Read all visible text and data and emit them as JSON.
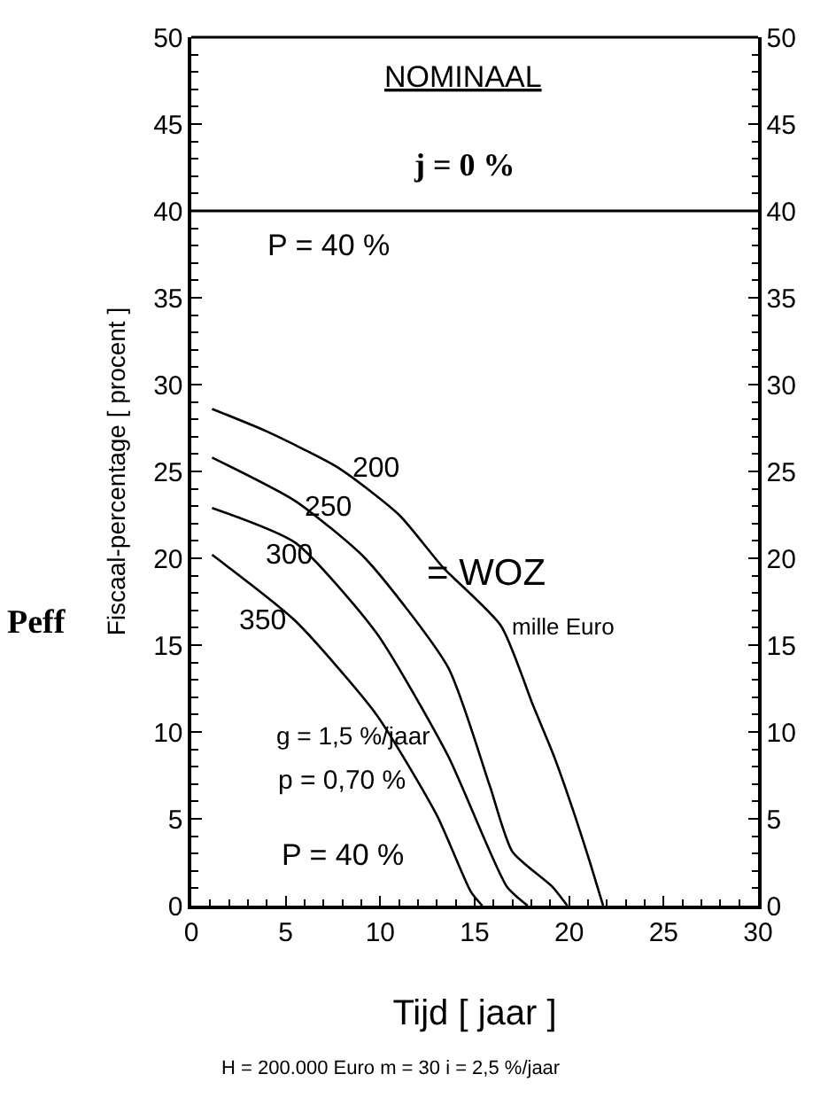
{
  "chart_data": {
    "type": "line",
    "xlabel": "Tijd [ jaar ]",
    "ylabel": "Fiscaal-percentage [ procent ]",
    "xlim": [
      0,
      30
    ],
    "xticks": [
      0,
      5,
      10,
      15,
      20,
      25,
      30
    ],
    "ylim": [
      0,
      50
    ],
    "yticks": [
      0,
      5,
      10,
      15,
      20,
      25,
      30,
      35,
      40,
      45,
      50
    ],
    "y2lim": [
      0,
      50
    ],
    "y2ticks": [
      0,
      5,
      10,
      15,
      20,
      25,
      30,
      35,
      40,
      45,
      50
    ],
    "marker": "none",
    "line_style": "solid",
    "series": [
      {
        "color": "#000000",
        "x": [
          1.1,
          4,
          7.8,
          11,
          13.3,
          16.4,
          18.1,
          19.2,
          20.3,
          21.1,
          21.8
        ],
        "values": [
          28.6,
          27.3,
          25.2,
          22.5,
          19.5,
          16.1,
          11.5,
          8.6,
          5.2,
          2.5,
          0
        ]
      },
      {
        "color": "#000000",
        "x": [
          1.1,
          5.5,
          9.2,
          13.6,
          15.8,
          17.0,
          19.1,
          19.9
        ],
        "values": [
          25.8,
          23.3,
          20.0,
          13.7,
          6.9,
          3.1,
          1.1,
          0
        ]
      },
      {
        "color": "#000000",
        "x": [
          1.1,
          5.5,
          9.8,
          13.6,
          16.7,
          17.8
        ],
        "values": [
          22.9,
          20.9,
          15.7,
          8.6,
          1.1,
          0
        ]
      },
      {
        "color": "#000000",
        "x": [
          1.1,
          5.5,
          9.8,
          13.0,
          14.8,
          15.4
        ],
        "values": [
          20.2,
          16.4,
          11.0,
          5.2,
          0.8,
          0
        ]
      }
    ],
    "ref_lines": [
      {
        "axis": "y",
        "value": 40,
        "color": "#000000"
      }
    ],
    "annotations": [
      "200",
      "250",
      "300",
      "350",
      "P = 40 %",
      "NOMINAAL",
      "j = 0 %",
      "= WOZ",
      "mille Euro",
      "g = 1,5 %/jaar",
      "p = 0,70 %",
      "P = 40 %",
      "Peff",
      "H = 200.000 Euro m = 30 i = 2,5 %/jaar"
    ]
  }
}
